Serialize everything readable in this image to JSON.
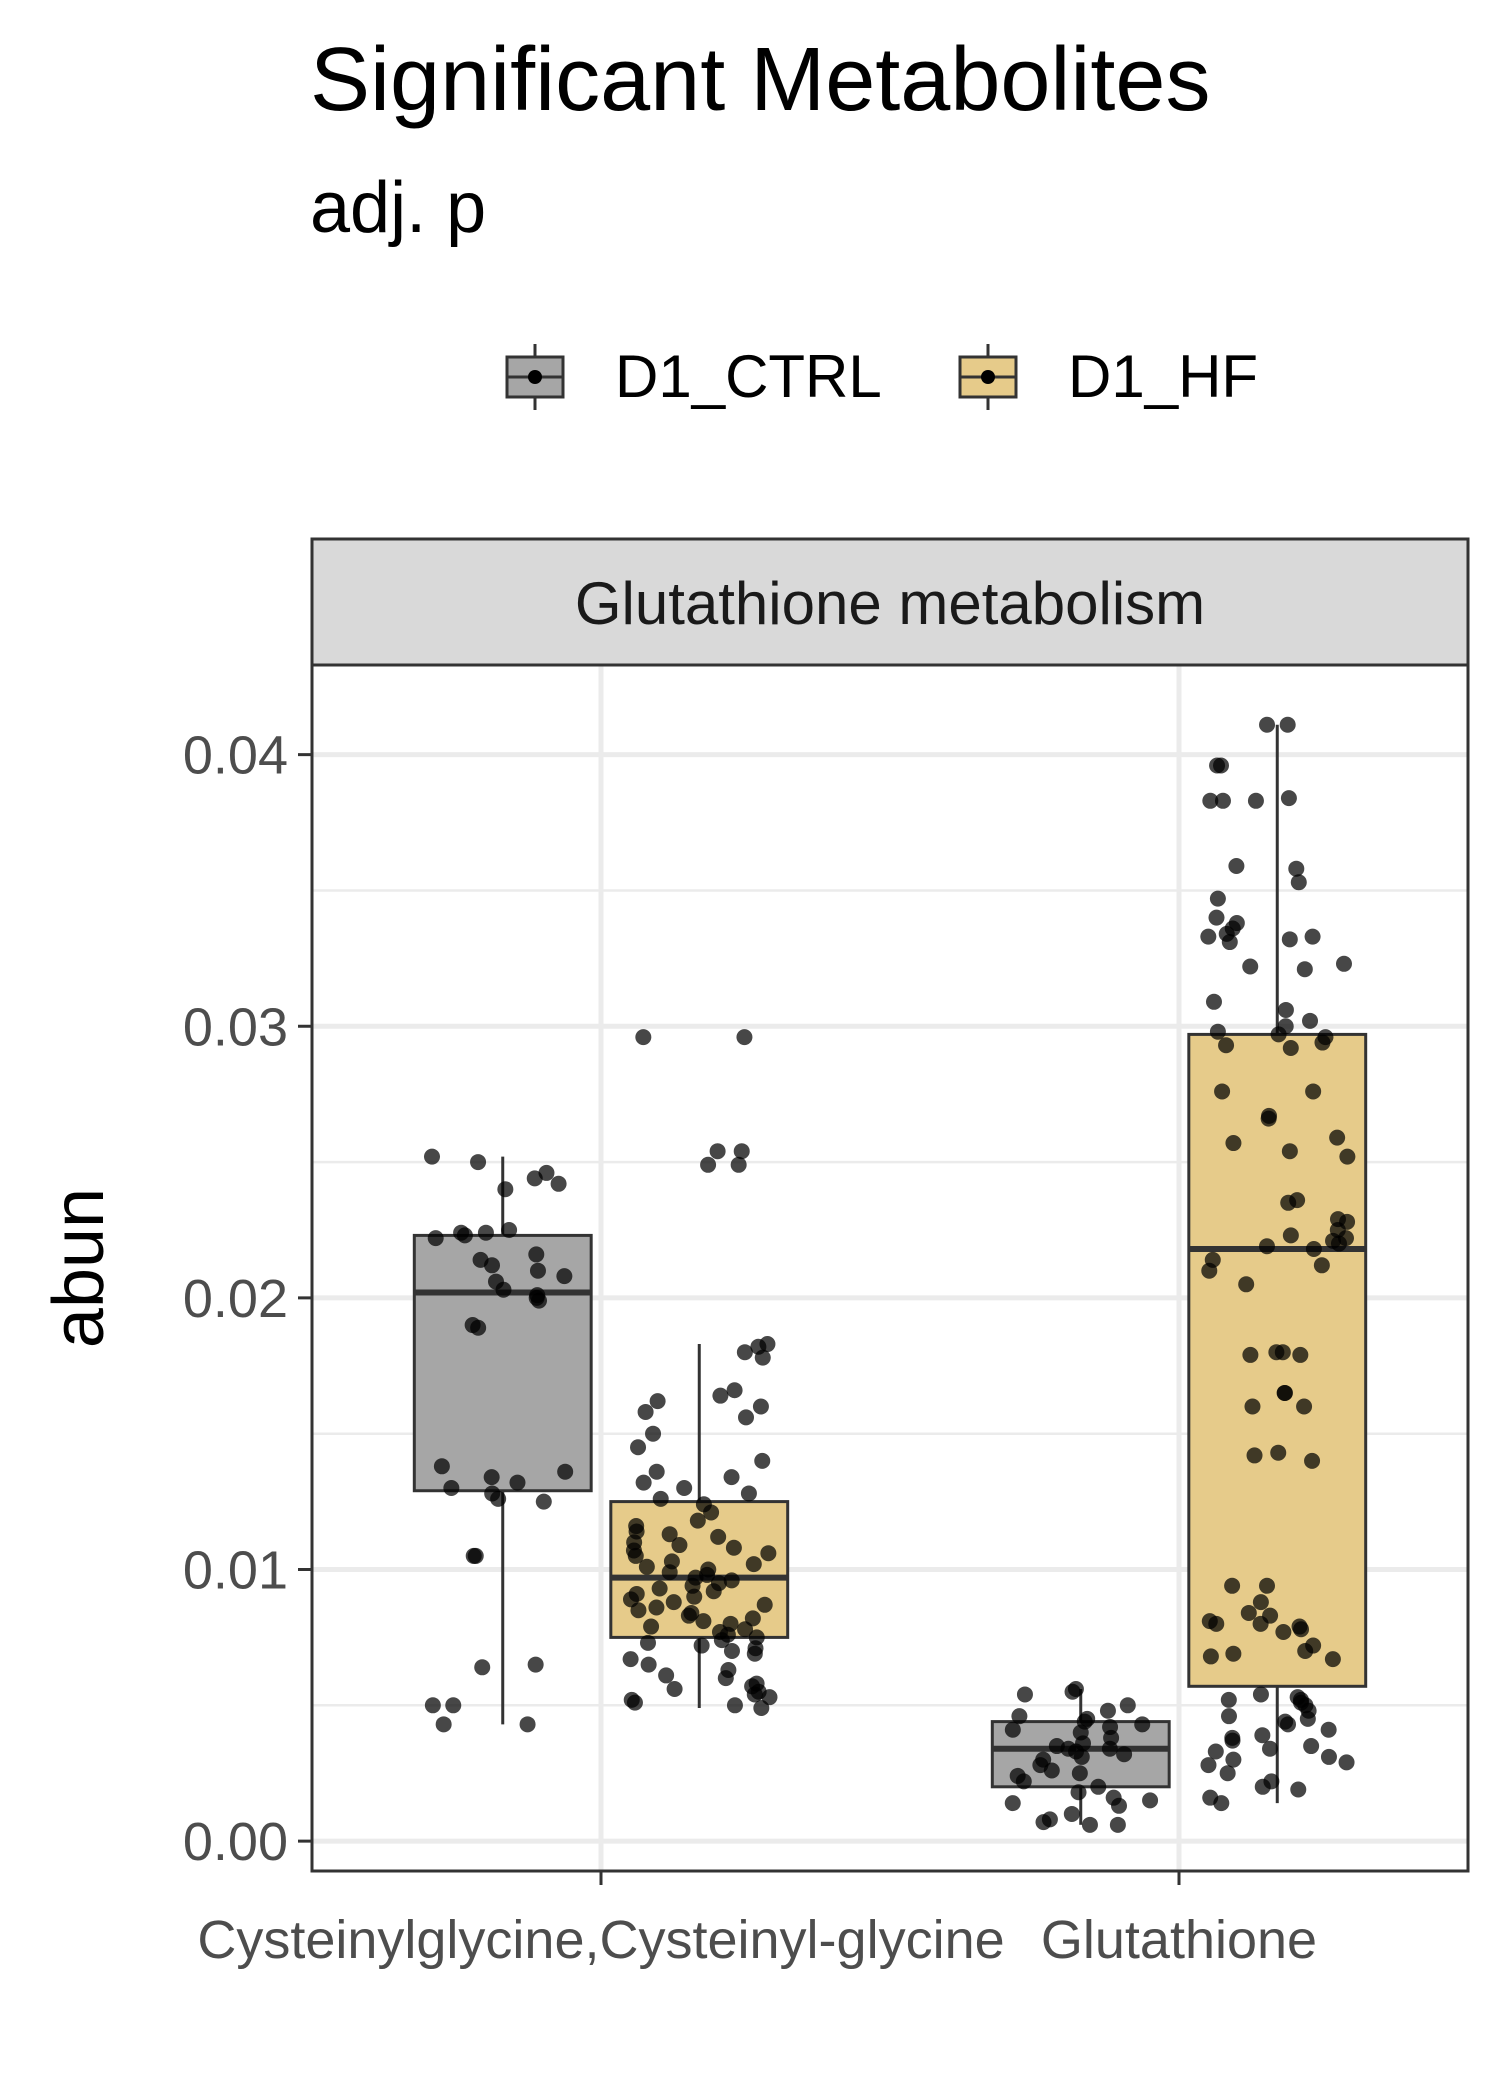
{
  "chart_data": {
    "type": "box",
    "title": "Significant Metabolites",
    "subtitle": "adj. p",
    "facet": "Glutathione metabolism",
    "ylabel": "abun",
    "xlabel": "",
    "categories": [
      "Cysteinylglycine,Cysteinyl-glycine",
      "Glutathione"
    ],
    "y_ticks": [
      "0.00",
      "0.01",
      "0.02",
      "0.03",
      "0.04"
    ],
    "ylim": [
      -0.0011,
      0.0433
    ],
    "grid": true,
    "legend_position": "top",
    "series": [
      {
        "name": "D1_CTRL",
        "color": "#a6a6a6",
        "boxes": [
          {
            "category": "Cysteinylglycine,Cysteinyl-glycine",
            "min": 0.0043,
            "q1": 0.0129,
            "median": 0.0202,
            "q3": 0.0223,
            "max": 0.0252,
            "points": [
              0.0252,
              0.025,
              0.0246,
              0.0244,
              0.0242,
              0.024,
              0.0225,
              0.0224,
              0.0224,
              0.0223,
              0.0222,
              0.0216,
              0.0214,
              0.0212,
              0.021,
              0.0208,
              0.0206,
              0.0203,
              0.0201,
              0.02,
              0.0199,
              0.019,
              0.0189,
              0.0138,
              0.0136,
              0.0134,
              0.0132,
              0.013,
              0.0128,
              0.0126,
              0.0125,
              0.0105,
              0.0105,
              0.0065,
              0.0064,
              0.005,
              0.005,
              0.0043,
              0.0043
            ]
          },
          {
            "category": "Glutathione",
            "min": 0.0006,
            "q1": 0.002,
            "median": 0.0034,
            "q3": 0.0044,
            "max": 0.0056,
            "points": [
              0.0056,
              0.0055,
              0.0054,
              0.005,
              0.0048,
              0.0046,
              0.0045,
              0.0044,
              0.0043,
              0.0042,
              0.0041,
              0.004,
              0.0038,
              0.0036,
              0.0035,
              0.0034,
              0.0034,
              0.0033,
              0.0032,
              0.0031,
              0.003,
              0.0028,
              0.0026,
              0.0025,
              0.0024,
              0.0022,
              0.002,
              0.0018,
              0.0016,
              0.0015,
              0.0014,
              0.0013,
              0.001,
              0.0008,
              0.0007,
              0.0006,
              0.0006
            ]
          }
        ]
      },
      {
        "name": "D1_HF",
        "color": "#e6cb8a",
        "boxes": [
          {
            "category": "Cysteinylglycine,Cysteinyl-glycine",
            "min": 0.0049,
            "q1": 0.0075,
            "median": 0.0097,
            "q3": 0.0125,
            "max": 0.0183,
            "points": [
              0.0296,
              0.0296,
              0.0254,
              0.0254,
              0.0249,
              0.0249,
              0.0183,
              0.0182,
              0.018,
              0.0178,
              0.0166,
              0.0164,
              0.0162,
              0.016,
              0.0158,
              0.0156,
              0.015,
              0.0145,
              0.014,
              0.0136,
              0.0134,
              0.0132,
              0.013,
              0.0128,
              0.0126,
              0.0124,
              0.0121,
              0.0118,
              0.0116,
              0.0114,
              0.0113,
              0.0112,
              0.011,
              0.0109,
              0.0108,
              0.0107,
              0.0106,
              0.0105,
              0.0103,
              0.0102,
              0.0101,
              0.01,
              0.0099,
              0.0098,
              0.0097,
              0.0096,
              0.0095,
              0.0094,
              0.0093,
              0.0092,
              0.0091,
              0.009,
              0.0089,
              0.0088,
              0.0087,
              0.0086,
              0.0085,
              0.0084,
              0.0083,
              0.0082,
              0.0081,
              0.008,
              0.0079,
              0.0078,
              0.0077,
              0.0076,
              0.0075,
              0.0074,
              0.0073,
              0.0072,
              0.0071,
              0.007,
              0.0069,
              0.0067,
              0.0065,
              0.0063,
              0.0061,
              0.006,
              0.0058,
              0.0057,
              0.0056,
              0.0055,
              0.0054,
              0.0053,
              0.0052,
              0.0051,
              0.005,
              0.0049
            ]
          },
          {
            "category": "Glutathione",
            "min": 0.0014,
            "q1": 0.0057,
            "median": 0.0218,
            "q3": 0.0297,
            "max": 0.0411,
            "points": [
              0.0411,
              0.0411,
              0.0396,
              0.0396,
              0.0384,
              0.0383,
              0.0383,
              0.0383,
              0.0359,
              0.0358,
              0.0353,
              0.0347,
              0.034,
              0.0338,
              0.0336,
              0.0334,
              0.0333,
              0.0333,
              0.0332,
              0.0331,
              0.0323,
              0.0322,
              0.0321,
              0.0309,
              0.0306,
              0.0302,
              0.03,
              0.0298,
              0.0297,
              0.0296,
              0.0294,
              0.0293,
              0.0292,
              0.0276,
              0.0276,
              0.0267,
              0.0266,
              0.0259,
              0.0257,
              0.0254,
              0.0252,
              0.0236,
              0.0235,
              0.0229,
              0.0228,
              0.0225,
              0.0223,
              0.0222,
              0.0221,
              0.022,
              0.0219,
              0.0218,
              0.0214,
              0.0212,
              0.021,
              0.0205,
              0.018,
              0.018,
              0.0179,
              0.0179,
              0.0165,
              0.0165,
              0.016,
              0.016,
              0.0143,
              0.0142,
              0.014,
              0.0094,
              0.0094,
              0.0088,
              0.0084,
              0.0083,
              0.0081,
              0.008,
              0.008,
              0.0079,
              0.0078,
              0.0077,
              0.0072,
              0.007,
              0.0069,
              0.0068,
              0.0067,
              0.0054,
              0.0053,
              0.0052,
              0.0052,
              0.0051,
              0.005,
              0.0048,
              0.0046,
              0.0045,
              0.0044,
              0.0043,
              0.0041,
              0.0039,
              0.0038,
              0.0037,
              0.0035,
              0.0034,
              0.0033,
              0.0031,
              0.003,
              0.0029,
              0.0028,
              0.0025,
              0.0022,
              0.002,
              0.0019,
              0.0016,
              0.0014
            ]
          }
        ]
      }
    ]
  }
}
